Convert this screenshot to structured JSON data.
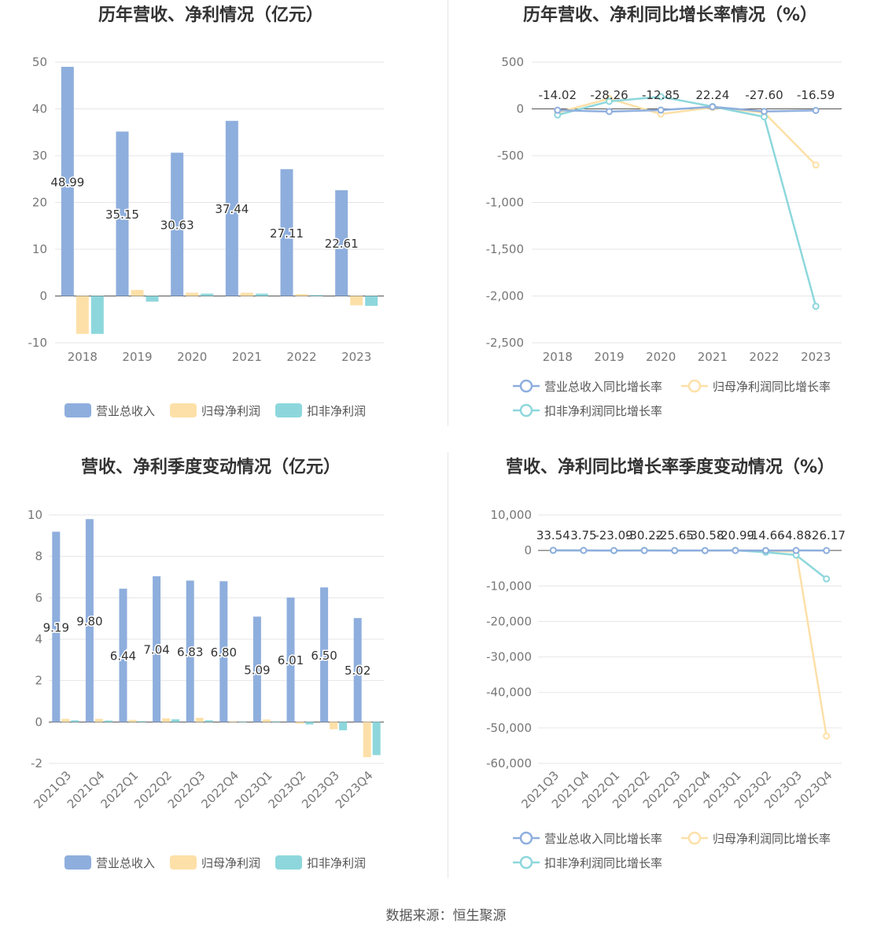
{
  "footer": "数据来源：恒生聚源",
  "colors": {
    "revenue": "#8eaedd",
    "net_profit": "#fde0a8",
    "deducted": "#8dd7dc",
    "grid": "#e6e6ea",
    "axis_label": "#777777",
    "title": "#333333"
  },
  "chart_data": [
    {
      "type": "bar",
      "title": "历年营收、净利情况（亿元）",
      "categories": [
        "2018",
        "2019",
        "2020",
        "2021",
        "2022",
        "2023"
      ],
      "yticks": [
        "50",
        "40",
        "30",
        "20",
        "10",
        "0",
        "-10"
      ],
      "ylim": [
        -10,
        50
      ],
      "series": [
        {
          "name": "营业总收入",
          "values": [
            48.99,
            35.15,
            30.63,
            37.44,
            27.11,
            22.61
          ]
        },
        {
          "name": "归母净利润",
          "values": [
            -8.1,
            1.3,
            0.7,
            0.7,
            0.4,
            -2.0
          ]
        },
        {
          "name": "扣非净利润",
          "values": [
            -8.1,
            -1.2,
            0.5,
            0.5,
            0.2,
            -2.1
          ]
        }
      ],
      "value_labels": [
        "48.99",
        "35.15",
        "30.63",
        "37.44",
        "27.11",
        "22.61"
      ],
      "legend_position": "bottom"
    },
    {
      "type": "line",
      "title": "历年营收、净利同比增长率情况（%）",
      "categories": [
        "2018",
        "2019",
        "2020",
        "2021",
        "2022",
        "2023"
      ],
      "yticks": [
        "500",
        "0",
        "-500",
        "-1,000",
        "-1,500",
        "-2,000",
        "-2,500"
      ],
      "ylim": [
        -2500,
        500
      ],
      "series": [
        {
          "name": "营业总收入同比增长率",
          "values": [
            -14.02,
            -28.26,
            -12.85,
            22.24,
            -27.6,
            -16.59
          ]
        },
        {
          "name": "归母净利润同比增长率",
          "values": [
            -40,
            110,
            -55,
            15,
            -40,
            -600
          ]
        },
        {
          "name": "扣非净利润同比增长率",
          "values": [
            -65,
            80,
            130,
            25,
            -85,
            -2110
          ]
        }
      ],
      "value_labels": [
        "-14.02",
        "-28.26",
        "-12.85",
        "22.24",
        "-27.60",
        "-16.59"
      ],
      "legend_position": "bottom"
    },
    {
      "type": "bar",
      "title": "营收、净利季度变动情况（亿元）",
      "categories": [
        "2021Q3",
        "2021Q4",
        "2022Q1",
        "2022Q2",
        "2022Q3",
        "2022Q4",
        "2023Q1",
        "2023Q2",
        "2023Q3",
        "2023Q4"
      ],
      "yticks": [
        "10",
        "8",
        "6",
        "4",
        "2",
        "0",
        "-2"
      ],
      "ylim": [
        -2,
        10
      ],
      "series": [
        {
          "name": "营业总收入",
          "values": [
            9.19,
            9.8,
            6.44,
            7.04,
            6.83,
            6.8,
            5.09,
            6.01,
            6.5,
            5.02
          ]
        },
        {
          "name": "归母净利润",
          "values": [
            0.15,
            0.15,
            0.1,
            0.18,
            0.2,
            0.03,
            0.12,
            -0.08,
            -0.35,
            -1.7
          ]
        },
        {
          "name": "扣非净利润",
          "values": [
            0.08,
            0.07,
            0.04,
            0.13,
            0.08,
            0.02,
            0.03,
            -0.12,
            -0.4,
            -1.6
          ]
        }
      ],
      "value_labels": [
        "9.19",
        "9.80",
        "6.44",
        "7.04",
        "6.83",
        "6.80",
        "5.09",
        "6.01",
        "6.50",
        "5.02"
      ],
      "legend_position": "bottom"
    },
    {
      "type": "line",
      "title": "营收、净利同比增长率季度变动情况（%）",
      "categories": [
        "2021Q3",
        "2021Q4",
        "2022Q1",
        "2022Q2",
        "2022Q3",
        "2022Q4",
        "2023Q1",
        "2023Q2",
        "2023Q3",
        "2023Q4"
      ],
      "yticks": [
        "10,000",
        "0",
        "-10,000",
        "-20,000",
        "-30,000",
        "-40,000",
        "-50,000",
        "-60,000"
      ],
      "ylim": [
        -60000,
        10000
      ],
      "series": [
        {
          "name": "营业总收入同比增长率",
          "values": [
            33.54,
            3.75,
            -23.09,
            -30.22,
            -25.65,
            -30.58,
            -20.99,
            -14.66,
            -4.88,
            -26.17
          ]
        },
        {
          "name": "归母净利润同比增长率",
          "values": [
            20,
            10,
            -30,
            30,
            -20,
            -40,
            10,
            -200,
            -300,
            -52300
          ]
        },
        {
          "name": "扣非净利润同比增长率",
          "values": [
            10,
            5,
            -40,
            40,
            -50,
            -30,
            20,
            -500,
            -1300,
            -8000
          ]
        }
      ],
      "value_labels": [
        "33.54",
        "3.75",
        "-23.09",
        "-30.22",
        "-25.65",
        "-30.58",
        "-20.99",
        "-14.66",
        "-4.88",
        "-26.17"
      ],
      "legend_position": "bottom"
    }
  ]
}
